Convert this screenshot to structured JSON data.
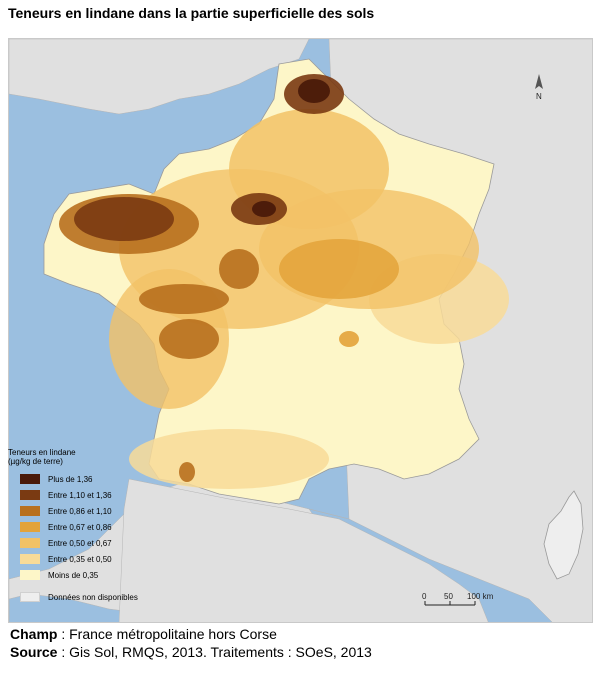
{
  "title": "Teneurs en lindane dans la partie superficielle des sols",
  "legend": {
    "title_line1": "Teneurs en lindane",
    "title_line2": "(µg/kg de terre)",
    "items": [
      {
        "label": "Plus de 1,36",
        "color": "#4a1a0a"
      },
      {
        "label": "Entre 1,10 et 1,36",
        "color": "#7a3a12"
      },
      {
        "label": "Entre 0,86 et 1,10",
        "color": "#b8701e"
      },
      {
        "label": "Entre 0,67 et 0,86",
        "color": "#e3a33a"
      },
      {
        "label": "Entre 0,50 et 0,67",
        "color": "#f2c266"
      },
      {
        "label": "Entre 0,35 et 0,50",
        "color": "#f8db98"
      },
      {
        "label": "Moins de 0,35",
        "color": "#fdf6c8"
      }
    ],
    "na": {
      "label": "Données non disponibles",
      "color": "#eeeeee"
    }
  },
  "scale": {
    "ticks": [
      "0",
      "50",
      "100 km"
    ]
  },
  "north_label": "N",
  "footer": {
    "champ_label": "Champ",
    "champ_text": " : France métropolitaine hors Corse",
    "source_label": "Source",
    "source_text": " : Gis Sol, RMQS, 2013. Traitements : SOeS, 2013"
  },
  "colors": {
    "sea": "#9bbfe0",
    "land": "#e0e0e0"
  }
}
